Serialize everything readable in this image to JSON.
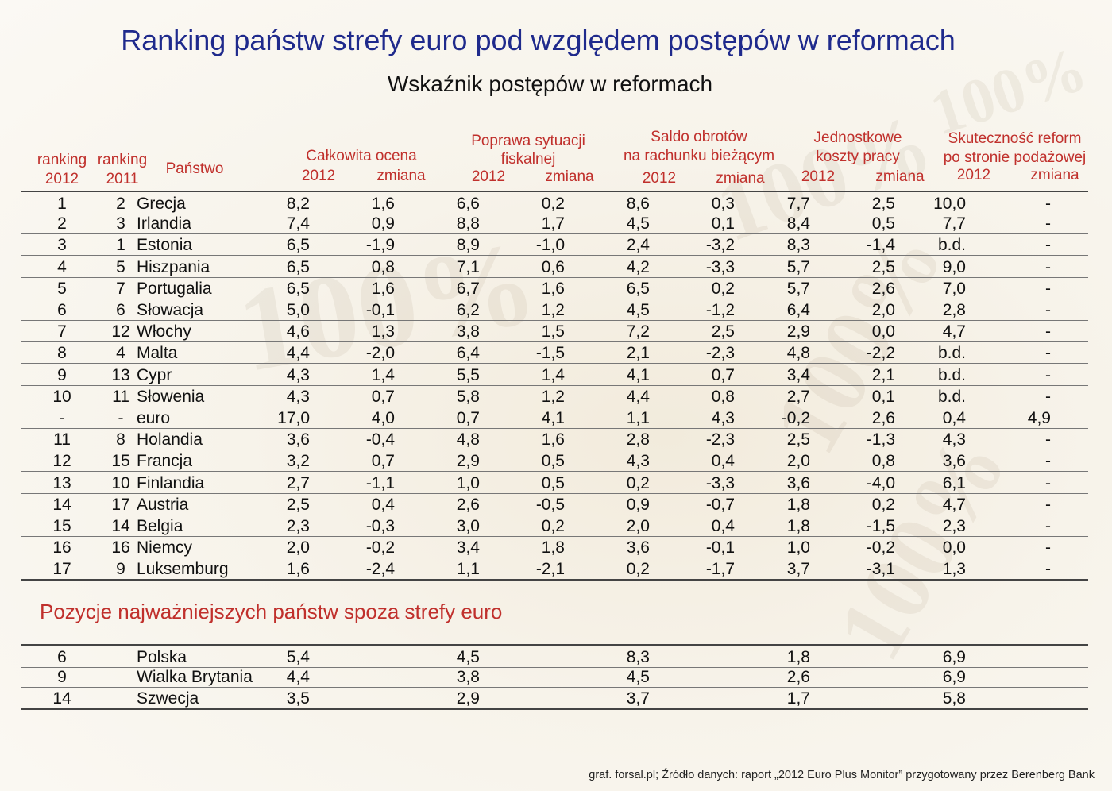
{
  "title": "Ranking państw strefy euro pod względem postępów w reformach",
  "subtitle": "Wskaźnik postępów w reformach",
  "headers": {
    "rank2012_line1": "ranking",
    "rank2012_line2": "2012",
    "rank2011_line1": "ranking",
    "rank2011_line2": "2011",
    "country": "Państwo",
    "total": "Całkowita ocena",
    "fiscal_line1": "Poprawa sytuacji",
    "fiscal_line2": "fiskalnej",
    "current_line1": "Saldo obrotów",
    "current_line2": "na rachunku bieżącym",
    "labour_line1": "Jednostkowe",
    "labour_line2": "koszty pracy",
    "supply_line1": "Skuteczność reform",
    "supply_line2": "po stronie podażowej",
    "year": "2012",
    "change": "zmiana"
  },
  "rows": [
    {
      "r12": "1",
      "r11": "2",
      "country": "Grecja",
      "t12": "8,2",
      "tch": "1,6",
      "f12": "6,6",
      "fch": "0,2",
      "ca12": "8,6",
      "cach": "0,3",
      "l12": "7,7",
      "lch": "2,5",
      "s12": "10,0",
      "sch": "-"
    },
    {
      "r12": "2",
      "r11": "3",
      "country": "Irlandia",
      "t12": "7,4",
      "tch": "0,9",
      "f12": "8,8",
      "fch": "1,7",
      "ca12": "4,5",
      "cach": "0,1",
      "l12": "8,4",
      "lch": "0,5",
      "s12": "7,7",
      "sch": "-"
    },
    {
      "r12": "3",
      "r11": "1",
      "country": "Estonia",
      "t12": "6,5",
      "tch": "-1,9",
      "f12": "8,9",
      "fch": "-1,0",
      "ca12": "2,4",
      "cach": "-3,2",
      "l12": "8,3",
      "lch": "-1,4",
      "s12": "b.d.",
      "sch": "-"
    },
    {
      "r12": "4",
      "r11": "5",
      "country": "Hiszpania",
      "t12": "6,5",
      "tch": "0,8",
      "f12": "7,1",
      "fch": "0,6",
      "ca12": "4,2",
      "cach": "-3,3",
      "l12": "5,7",
      "lch": "2,5",
      "s12": "9,0",
      "sch": "-"
    },
    {
      "r12": "5",
      "r11": "7",
      "country": "Portugalia",
      "t12": "6,5",
      "tch": "1,6",
      "f12": "6,7",
      "fch": "1,6",
      "ca12": "6,5",
      "cach": "0,2",
      "l12": "5,7",
      "lch": "2,6",
      "s12": "7,0",
      "sch": "-"
    },
    {
      "r12": "6",
      "r11": "6",
      "country": "Słowacja",
      "t12": "5,0",
      "tch": "-0,1",
      "f12": "6,2",
      "fch": "1,2",
      "ca12": "4,5",
      "cach": "-1,2",
      "l12": "6,4",
      "lch": "2,0",
      "s12": "2,8",
      "sch": "-"
    },
    {
      "r12": "7",
      "r11": "12",
      "country": "Włochy",
      "t12": "4,6",
      "tch": "1,3",
      "f12": "3,8",
      "fch": "1,5",
      "ca12": "7,2",
      "cach": "2,5",
      "l12": "2,9",
      "lch": "0,0",
      "s12": "4,7",
      "sch": "-"
    },
    {
      "r12": "8",
      "r11": "4",
      "country": "Malta",
      "t12": "4,4",
      "tch": "-2,0",
      "f12": "6,4",
      "fch": "-1,5",
      "ca12": "2,1",
      "cach": "-2,3",
      "l12": "4,8",
      "lch": "-2,2",
      "s12": "b.d.",
      "sch": "-"
    },
    {
      "r12": "9",
      "r11": "13",
      "country": "Cypr",
      "t12": "4,3",
      "tch": "1,4",
      "f12": "5,5",
      "fch": "1,4",
      "ca12": "4,1",
      "cach": "0,7",
      "l12": "3,4",
      "lch": "2,1",
      "s12": "b.d.",
      "sch": "-"
    },
    {
      "r12": "10",
      "r11": "11",
      "country": "Słowenia",
      "t12": "4,3",
      "tch": "0,7",
      "f12": "5,8",
      "fch": "1,2",
      "ca12": "4,4",
      "cach": "0,8",
      "l12": "2,7",
      "lch": "0,1",
      "s12": "b.d.",
      "sch": "-"
    },
    {
      "r12": "-",
      "r11": "-",
      "country": "euro",
      "t12": "17,0",
      "tch": "4,0",
      "f12": "0,7",
      "fch": "4,1",
      "ca12": "1,1",
      "cach": "4,3",
      "l12": "-0,2",
      "lch": "2,6",
      "s12": "0,4",
      "sch": "4,9"
    },
    {
      "r12": "11",
      "r11": "8",
      "country": "Holandia",
      "t12": "3,6",
      "tch": "-0,4",
      "f12": "4,8",
      "fch": "1,6",
      "ca12": "2,8",
      "cach": "-2,3",
      "l12": "2,5",
      "lch": "-1,3",
      "s12": "4,3",
      "sch": "-"
    },
    {
      "r12": "12",
      "r11": "15",
      "country": "Francja",
      "t12": "3,2",
      "tch": "0,7",
      "f12": "2,9",
      "fch": "0,5",
      "ca12": "4,3",
      "cach": "0,4",
      "l12": "2,0",
      "lch": "0,8",
      "s12": "3,6",
      "sch": "-"
    },
    {
      "r12": "13",
      "r11": "10",
      "country": "Finlandia",
      "t12": "2,7",
      "tch": "-1,1",
      "f12": "1,0",
      "fch": "0,5",
      "ca12": "0,2",
      "cach": "-3,3",
      "l12": "3,6",
      "lch": "-4,0",
      "s12": "6,1",
      "sch": "-"
    },
    {
      "r12": "14",
      "r11": "17",
      "country": "Austria",
      "t12": "2,5",
      "tch": "0,4",
      "f12": "2,6",
      "fch": "-0,5",
      "ca12": "0,9",
      "cach": "-0,7",
      "l12": "1,8",
      "lch": "0,2",
      "s12": "4,7",
      "sch": "-"
    },
    {
      "r12": "15",
      "r11": "14",
      "country": "Belgia",
      "t12": "2,3",
      "tch": "-0,3",
      "f12": "3,0",
      "fch": "0,2",
      "ca12": "2,0",
      "cach": "0,4",
      "l12": "1,8",
      "lch": "-1,5",
      "s12": "2,3",
      "sch": "-"
    },
    {
      "r12": "16",
      "r11": "16",
      "country": "Niemcy",
      "t12": "2,0",
      "tch": "-0,2",
      "f12": "3,4",
      "fch": "1,8",
      "ca12": "3,6",
      "cach": "-0,1",
      "l12": "1,0",
      "lch": "-0,2",
      "s12": "0,0",
      "sch": "-"
    },
    {
      "r12": "17",
      "r11": "9",
      "country": "Luksemburg",
      "t12": "1,6",
      "tch": "-2,4",
      "f12": "1,1",
      "fch": "-2,1",
      "ca12": "0,2",
      "cach": "-1,7",
      "l12": "3,7",
      "lch": "-3,1",
      "s12": "1,3",
      "sch": "-"
    }
  ],
  "section_title": "Pozycje najważniejszych państw spoza strefy euro",
  "non_euro_rows": [
    {
      "r12": "6",
      "country": "Polska",
      "t12": "5,4",
      "f12": "4,5",
      "ca12": "8,3",
      "l12": "1,8",
      "s12": "6,9"
    },
    {
      "r12": "9",
      "country": "Wialka Brytania",
      "t12": "4,4",
      "f12": "3,8",
      "ca12": "4,5",
      "l12": "2,6",
      "s12": "6,9"
    },
    {
      "r12": "14",
      "country": "Szwecja",
      "t12": "3,5",
      "f12": "2,9",
      "ca12": "3,7",
      "l12": "1,7",
      "s12": "5,8"
    }
  ],
  "footer": "graf. forsal.pl; Źródło danych: raport „2012 Euro Plus Monitor” przygotowany przez Berenberg Bank",
  "colors": {
    "title": "#1f2a8c",
    "header": "#c0302c",
    "section": "#c0302c"
  }
}
